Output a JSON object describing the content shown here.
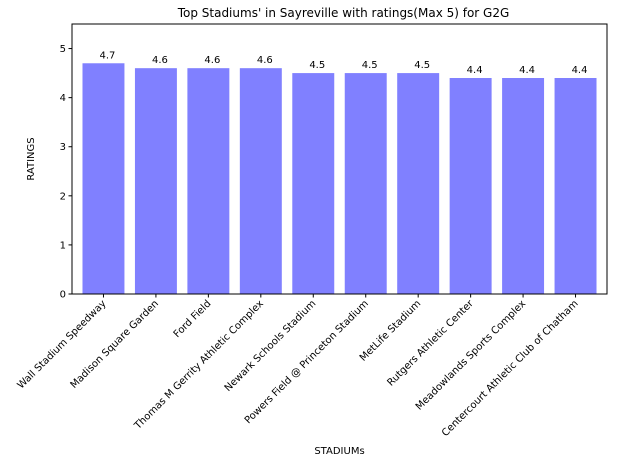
{
  "chart_data": {
    "type": "bar",
    "title": "Top Stadiums' in Sayreville with ratings(Max 5) for G2G",
    "xlabel": "STADIUMs",
    "ylabel": "RATINGS",
    "categories": [
      "Wall Stadium Speedway",
      "Madison Square Garden",
      "Ford Field",
      "Thomas M Gerrity Athletic Complex",
      "Newark Schools Stadium",
      "Powers Field @ Princeton Stadium",
      "MetLife Stadium",
      "Rutgers Athletic Center",
      "Meadowlands Sports Complex",
      "Centercourt Athletic Club of Chatham"
    ],
    "values": [
      4.7,
      4.6,
      4.6,
      4.6,
      4.5,
      4.5,
      4.5,
      4.4,
      4.4,
      4.4
    ],
    "value_labels": [
      "4.7",
      "4.6",
      "4.6",
      "4.6",
      "4.5",
      "4.5",
      "4.5",
      "4.4",
      "4.4",
      "4.4"
    ],
    "ylim": [
      0,
      5.5
    ],
    "yticks": [
      0,
      1,
      2,
      3,
      4,
      5
    ],
    "ytick_labels": [
      "0",
      "1",
      "2",
      "3",
      "4",
      "5"
    ],
    "grid": false,
    "legend": "none",
    "bar_color": "#8080ff"
  }
}
